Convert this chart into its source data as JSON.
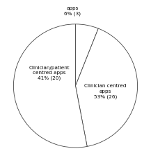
{
  "slices": [
    {
      "label": "apps\n6% (3)",
      "value": 6,
      "color": "#ffffff"
    },
    {
      "label": "Clinician/patient\ncentred apps\n41% (20)",
      "value": 41,
      "color": "#ffffff"
    },
    {
      "label": "Clinician centred\napps\n53% (26)",
      "value": 53,
      "color": "#ffffff"
    }
  ],
  "edge_color": "#444444",
  "edge_linewidth": 0.6,
  "label_fontsize": 5.2,
  "startangle": 90,
  "background_color": "#ffffff",
  "label_positions": [
    [
      -0.05,
      1.22,
      "center",
      "center"
    ],
    [
      -0.42,
      0.22,
      "center",
      "center"
    ],
    [
      0.48,
      -0.08,
      "center",
      "center"
    ]
  ],
  "label_texts": [
    "apps\n6% (3)",
    "Clinician/patient\ncentred apps\n41% (20)",
    "Clinician centred\napps\n53% (26)"
  ]
}
